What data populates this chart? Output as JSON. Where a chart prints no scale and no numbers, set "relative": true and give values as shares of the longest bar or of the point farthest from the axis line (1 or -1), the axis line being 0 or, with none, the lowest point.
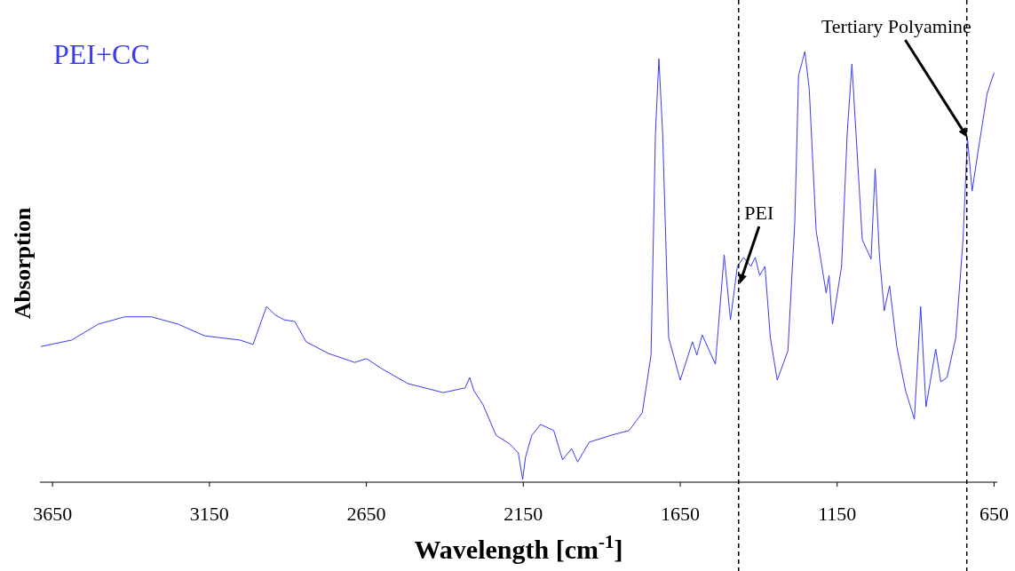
{
  "chart_data": {
    "type": "line",
    "title": "PEI+CC",
    "xlabel": "Wavelength [cm$^{-1}$]",
    "ylabel": "Absorption",
    "relative": true,
    "xlim": [
      3690,
      640
    ],
    "xticks": [
      3650,
      3150,
      2650,
      2150,
      1650,
      1150,
      650
    ],
    "grid": false,
    "marker": "none",
    "line_style": "solid",
    "series": [
      {
        "color": "#3b3bf5",
        "x": [
          3687,
          3589,
          3504,
          3420,
          3335,
          3250,
          3166,
          3053,
          3011,
          2968,
          2940,
          2912,
          2878,
          2842,
          2771,
          2687,
          2650,
          2602,
          2518,
          2405,
          2335,
          2321,
          2307,
          2279,
          2237,
          2194,
          2166,
          2152,
          2143,
          2123,
          2095,
          2053,
          2025,
          1996,
          1977,
          1940,
          1870,
          1813,
          1771,
          1743,
          1729,
          1718,
          1706,
          1687,
          1650,
          1611,
          1597,
          1580,
          1538,
          1510,
          1490,
          1468,
          1448,
          1425,
          1411,
          1397,
          1380,
          1363,
          1341,
          1307,
          1285,
          1273,
          1253,
          1239,
          1217,
          1185,
          1176,
          1165,
          1136,
          1118,
          1103,
          1090,
          1070,
          1042,
          1029,
          1015,
          1000,
          983,
          960,
          932,
          904,
          884,
          867,
          836,
          820,
          800,
          772,
          749,
          735,
          720,
          701,
          672,
          650
        ],
        "values": [
          0.315,
          0.33,
          0.367,
          0.384,
          0.384,
          0.367,
          0.34,
          0.33,
          0.32,
          0.408,
          0.388,
          0.377,
          0.373,
          0.326,
          0.299,
          0.278,
          0.287,
          0.264,
          0.229,
          0.208,
          0.219,
          0.243,
          0.212,
          0.181,
          0.109,
          0.089,
          0.068,
          0.006,
          0.058,
          0.109,
          0.134,
          0.12,
          0.052,
          0.078,
          0.047,
          0.093,
          0.109,
          0.12,
          0.161,
          0.295,
          0.81,
          0.983,
          0.81,
          0.336,
          0.237,
          0.326,
          0.295,
          0.342,
          0.274,
          0.528,
          0.377,
          0.501,
          0.522,
          0.501,
          0.522,
          0.48,
          0.501,
          0.336,
          0.237,
          0.305,
          0.604,
          0.944,
          1.0,
          0.913,
          0.584,
          0.439,
          0.48,
          0.367,
          0.501,
          0.81,
          0.971,
          0.81,
          0.563,
          0.518,
          0.728,
          0.522,
          0.398,
          0.456,
          0.315,
          0.212,
          0.146,
          0.408,
          0.175,
          0.309,
          0.233,
          0.243,
          0.336,
          0.563,
          0.8,
          0.676,
          0.769,
          0.903,
          0.951
        ]
      }
    ],
    "ref_lines": [
      {
        "axis": "x",
        "value": 1464,
        "color": "#000000",
        "line_style": "dashed"
      },
      {
        "axis": "x",
        "value": 737,
        "color": "#000000",
        "line_style": "dashed"
      }
    ],
    "annotations": [
      {
        "text": "PEI",
        "x": 1461,
        "y": 0.46
      },
      {
        "text": "Tertiary Polyamine",
        "x": 735,
        "y": 0.8
      }
    ]
  }
}
